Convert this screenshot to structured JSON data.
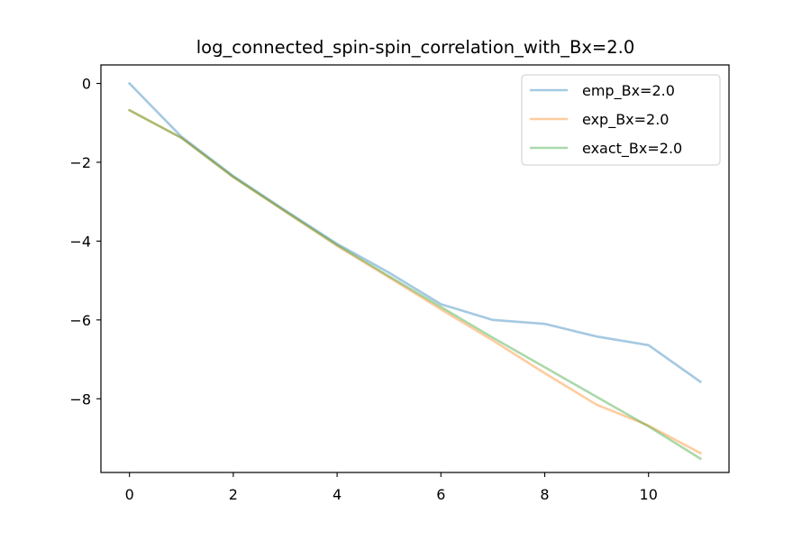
{
  "chart_data": {
    "type": "line",
    "title": "log_connected_spin-spin_correlation_with_Bx=2.0",
    "xlabel": "",
    "ylabel": "",
    "xlim": [
      -0.55,
      11.55
    ],
    "ylim": [
      -9.87,
      0.47
    ],
    "xticks": [
      0,
      2,
      4,
      6,
      8,
      10
    ],
    "yticks": [
      0,
      -2,
      -4,
      -6,
      -8
    ],
    "grid": false,
    "legend_position": "top-right",
    "series": [
      {
        "name": "emp_Bx=2.0",
        "color": "#1f77b4",
        "x": [
          0,
          1,
          2,
          3,
          4,
          5,
          6,
          7,
          8,
          9,
          10,
          11
        ],
        "y": [
          0.0,
          -1.35,
          -2.35,
          -3.22,
          -4.07,
          -4.8,
          -5.6,
          -6.0,
          -6.1,
          -6.42,
          -6.64,
          -7.57
        ]
      },
      {
        "name": "exp_Bx=2.0",
        "color": "#ff7f0e",
        "x": [
          0,
          1,
          2,
          3,
          4,
          5,
          6,
          7,
          8,
          9,
          10,
          11
        ],
        "y": [
          -0.68,
          -1.38,
          -2.38,
          -3.25,
          -4.12,
          -4.92,
          -5.73,
          -6.52,
          -7.35,
          -8.15,
          -8.68,
          -9.38
        ]
      },
      {
        "name": "exact_Bx=2.0",
        "color": "#2ca02c",
        "x": [
          0,
          1,
          2,
          3,
          4,
          5,
          6,
          7,
          8,
          9,
          10,
          11
        ],
        "y": [
          -0.68,
          -1.38,
          -2.37,
          -3.24,
          -4.1,
          -4.89,
          -5.67,
          -6.45,
          -7.2,
          -7.95,
          -8.7,
          -9.52
        ]
      }
    ],
    "line_alpha": 0.4
  }
}
